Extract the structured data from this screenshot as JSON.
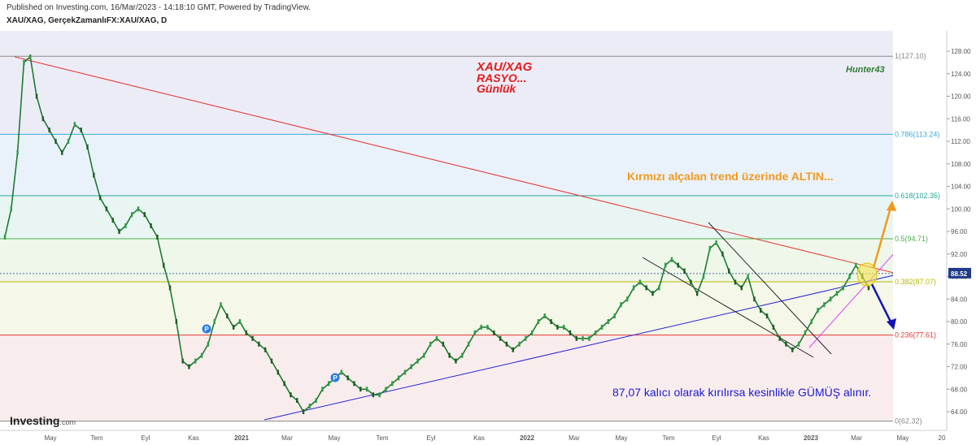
{
  "header": {
    "published": "Published on Investing.com, 16/Mar/2023 - 14:18:10 GMT, Powered by TradingView.",
    "symbol": "XAU/XAG, GerçekZamanlıFX:XAU/XAG, D"
  },
  "annotations": {
    "title_line1": "XAU/XAG",
    "title_line2": "RASYO...",
    "title_line3": "Günlük",
    "author": "Hunter43",
    "note_top": "Kırmızı alçalan trend üzerinde ALTIN...",
    "note_bottom": "87,07 kalıcı olarak kırılırsa kesinlikle GÜMÜŞ alınır."
  },
  "logo": {
    "main": "Investing",
    "suffix": ".com"
  },
  "chart_data": {
    "type": "line",
    "title": "",
    "xlabel": "",
    "ylabel": "",
    "ylim": [
      62.32,
      130
    ],
    "x_ticks": [
      "May",
      "Tem",
      "Eyl",
      "Kas",
      "2021",
      "Mar",
      "May",
      "Tem",
      "Eyl",
      "Kas",
      "2022",
      "Mar",
      "May",
      "Tem",
      "Eyl",
      "Kas",
      "2023",
      "Mar",
      "May",
      "20"
    ],
    "y_ticks": [
      64.0,
      68.0,
      72.0,
      76.0,
      80.0,
      84.0,
      88.0,
      92.0,
      96.0,
      100.0,
      104.0,
      108.0,
      112.0,
      116.0,
      120.0,
      124.0,
      128.0
    ],
    "current_price": "88.52",
    "fib_levels": [
      {
        "ratio": "1",
        "value": 127.1,
        "label": "1(127.10)",
        "color": "#888888"
      },
      {
        "ratio": "0.786",
        "value": 113.24,
        "label": "0.786(113.24)",
        "color": "#3fa9d8"
      },
      {
        "ratio": "0.618",
        "value": 102.35,
        "label": "0.618(102.35)",
        "color": "#26a69a"
      },
      {
        "ratio": "0.5",
        "value": 94.71,
        "label": "0.5(94.71)",
        "color": "#4caf50"
      },
      {
        "ratio": "0.382",
        "value": 87.07,
        "label": "0.382(87.07)",
        "color": "#b8b800"
      },
      {
        "ratio": "0.236",
        "value": 77.61,
        "label": "0.236(77.61)",
        "color": "#e53935"
      },
      {
        "ratio": "0",
        "value": 62.32,
        "label": "0(62.32)",
        "color": "#888888"
      }
    ],
    "series": [
      {
        "values": [
          95,
          100,
          110,
          126,
          127,
          120,
          116,
          114,
          112,
          110,
          112,
          115,
          114,
          111,
          106,
          102,
          100,
          98,
          96,
          97,
          99,
          100,
          99,
          97,
          95,
          90,
          86,
          80,
          73,
          72,
          73,
          74,
          76,
          80,
          83,
          81,
          79,
          80,
          78,
          77,
          76,
          75,
          73,
          71,
          69,
          67,
          66,
          64,
          65,
          66,
          68,
          69,
          70,
          71,
          70,
          69,
          68,
          68,
          67,
          67,
          68,
          69,
          70,
          71,
          72,
          73,
          74,
          76,
          77,
          76,
          74,
          73,
          74,
          76,
          78,
          79,
          79,
          78,
          77,
          76,
          75,
          76,
          77,
          78,
          80,
          81,
          80,
          79,
          79,
          78,
          77,
          77,
          77,
          78,
          79,
          80,
          81,
          83,
          84,
          86,
          87,
          86,
          85,
          86,
          90,
          91,
          90,
          89,
          87,
          85,
          88,
          93,
          94,
          92,
          89,
          87,
          86,
          88,
          84,
          82,
          81,
          79,
          77,
          76,
          75,
          76,
          78,
          80,
          82,
          83,
          84,
          85,
          86,
          88,
          90,
          88,
          86
        ]
      }
    ]
  }
}
